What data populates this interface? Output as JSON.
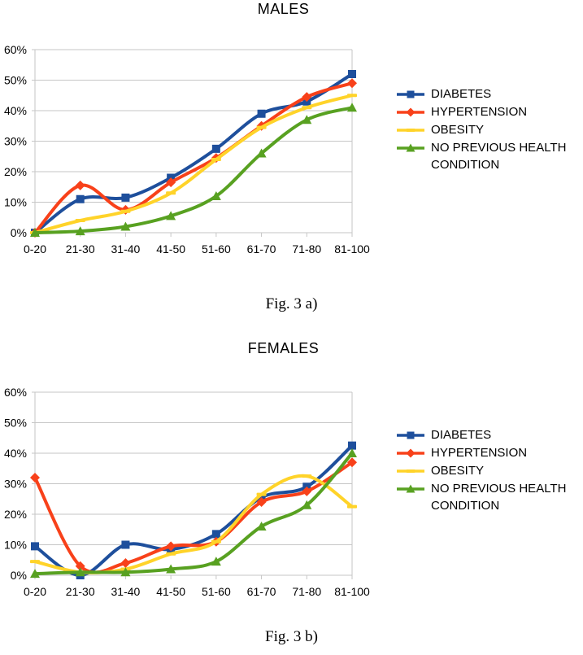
{
  "style": {
    "background": "#ffffff",
    "grid_color": "#c6c6c6",
    "axis_color": "#c6c6c6",
    "text_color": "#000000"
  },
  "figures": [
    {
      "id": "fig-3a",
      "caption": "Fig. 3 a)"
    },
    {
      "id": "fig-3b",
      "caption": "Fig. 3 b)"
    }
  ],
  "chart_data": [
    {
      "type": "line",
      "title": "MALES",
      "smooth": true,
      "grid": "horizontal",
      "legend_position": "right",
      "ylim": [
        0,
        60
      ],
      "y_ticks": [
        "0%",
        "10%",
        "20%",
        "30%",
        "40%",
        "50%",
        "60%"
      ],
      "categories": [
        "0-20",
        "21-30",
        "31-40",
        "41-50",
        "51-60",
        "61-70",
        "71-80",
        "81-100"
      ],
      "series": [
        {
          "name": "DIABETES",
          "color": "#1E4F9C",
          "marker": "square",
          "values": [
            0,
            11,
            11.5,
            18,
            27.5,
            39,
            43,
            52
          ]
        },
        {
          "name": "HYPERTENSION",
          "color": "#F8411A",
          "marker": "diamond",
          "values": [
            0,
            15.5,
            7.5,
            16.5,
            24.5,
            35,
            44.5,
            49
          ]
        },
        {
          "name": "OBESITY",
          "color": "#FFD329",
          "marker": "dash",
          "values": [
            0,
            4,
            7,
            13,
            24,
            34.5,
            41,
            45
          ]
        },
        {
          "name": "NO PREVIOUS HEALTH CONDITION",
          "color": "#58A121",
          "marker": "triangle",
          "values": [
            0,
            0.5,
            2,
            5.5,
            12,
            26,
            37,
            41
          ]
        }
      ]
    },
    {
      "type": "line",
      "title": "FEMALES",
      "smooth": true,
      "grid": "horizontal",
      "legend_position": "right",
      "ylim": [
        0,
        60
      ],
      "y_ticks": [
        "0%",
        "10%",
        "20%",
        "30%",
        "40%",
        "50%",
        "60%"
      ],
      "categories": [
        "0-20",
        "21-30",
        "31-40",
        "41-50",
        "51-60",
        "61-70",
        "71-80",
        "81-100"
      ],
      "series": [
        {
          "name": "DIABETES",
          "color": "#1E4F9C",
          "marker": "square",
          "values": [
            9.5,
            0,
            10,
            8.5,
            13.5,
            25.5,
            29,
            42.5
          ]
        },
        {
          "name": "HYPERTENSION",
          "color": "#F8411A",
          "marker": "diamond",
          "values": [
            32,
            3,
            4,
            9.5,
            11,
            24,
            27.5,
            37
          ]
        },
        {
          "name": "OBESITY",
          "color": "#FFD329",
          "marker": "dash",
          "values": [
            4.5,
            1,
            2,
            7,
            11,
            26.5,
            32.5,
            22.5
          ]
        },
        {
          "name": "NO PREVIOUS HEALTH CONDITION",
          "color": "#58A121",
          "marker": "triangle",
          "values": [
            0.5,
            1,
            1,
            2,
            4.5,
            16,
            23,
            40
          ]
        }
      ]
    }
  ]
}
